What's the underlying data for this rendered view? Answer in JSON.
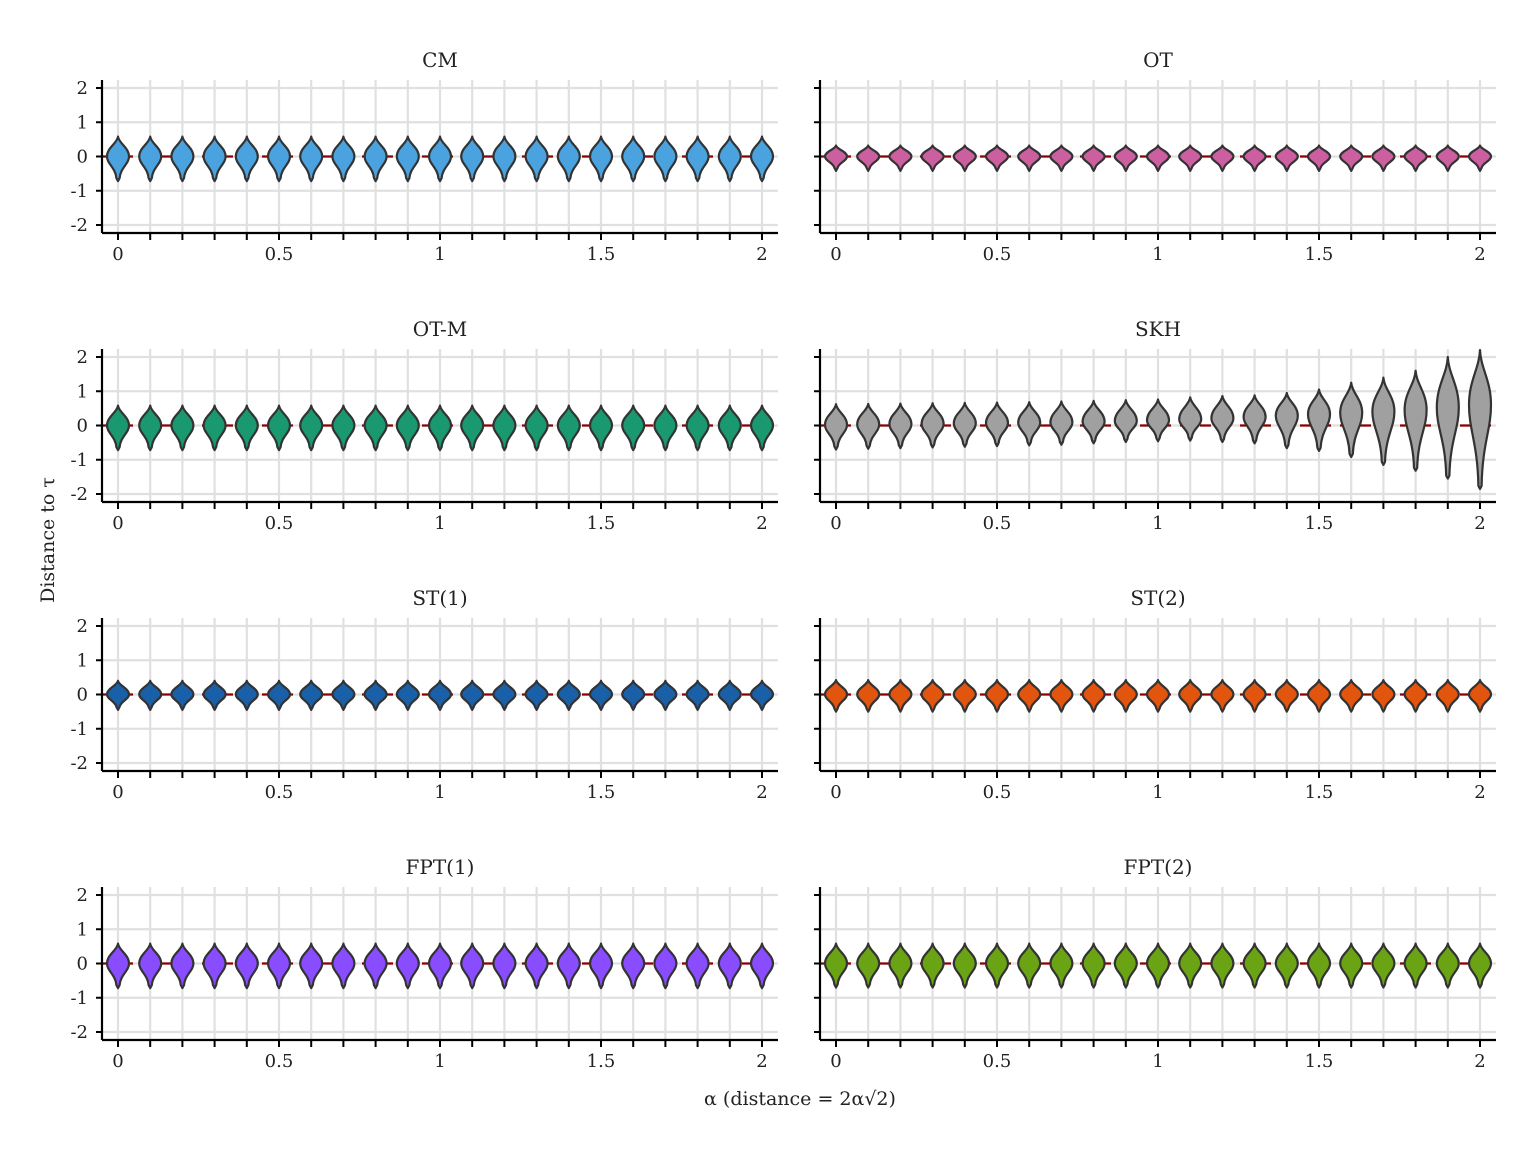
{
  "chart_data": {
    "type": "violin",
    "xlabel": "α (distance  = 2α√2)",
    "ylabel": "Distance to τ",
    "xlim": [
      0,
      2
    ],
    "ylim": [
      -2,
      2
    ],
    "x_ticks": [
      "0",
      "0.5",
      "1",
      "1.5",
      "2"
    ],
    "y_ticks": [
      "-2",
      "-1",
      "0",
      "1",
      "2"
    ],
    "alpha_values": [
      0,
      0.1,
      0.2,
      0.3,
      0.4,
      0.5,
      0.6,
      0.7,
      0.8,
      0.9,
      1.0,
      1.1,
      1.2,
      1.3,
      1.4,
      1.5,
      1.6,
      1.7,
      1.8,
      1.9,
      2.0
    ],
    "reference_line": {
      "y": 0,
      "style": "dashed",
      "color": "#8b0000"
    },
    "grid": true,
    "legend": "none",
    "panels": [
      {
        "title": "CM",
        "color": "#4aa3df",
        "median": [
          0,
          0,
          0,
          0,
          0,
          0,
          0,
          0,
          0,
          0,
          0,
          0,
          0,
          0,
          0,
          0,
          0,
          0,
          0,
          0,
          0
        ],
        "min": [
          -0.72,
          -0.72,
          -0.72,
          -0.72,
          -0.72,
          -0.72,
          -0.72,
          -0.72,
          -0.72,
          -0.72,
          -0.72,
          -0.72,
          -0.72,
          -0.72,
          -0.72,
          -0.72,
          -0.72,
          -0.72,
          -0.72,
          -0.72,
          -0.72
        ],
        "max": [
          0.58,
          0.58,
          0.58,
          0.58,
          0.58,
          0.58,
          0.58,
          0.58,
          0.58,
          0.58,
          0.58,
          0.58,
          0.58,
          0.58,
          0.58,
          0.58,
          0.58,
          0.58,
          0.58,
          0.58,
          0.58
        ]
      },
      {
        "title": "OT",
        "color": "#cc5fa0",
        "median": [
          0,
          0,
          0,
          0,
          0,
          0,
          0,
          0,
          0,
          0,
          0,
          0,
          0,
          0,
          0,
          0,
          0,
          0,
          0,
          0,
          0
        ],
        "min": [
          -0.42,
          -0.42,
          -0.42,
          -0.42,
          -0.42,
          -0.42,
          -0.42,
          -0.42,
          -0.42,
          -0.42,
          -0.42,
          -0.42,
          -0.42,
          -0.42,
          -0.42,
          -0.42,
          -0.42,
          -0.42,
          -0.42,
          -0.42,
          -0.42
        ],
        "max": [
          0.32,
          0.32,
          0.32,
          0.32,
          0.32,
          0.32,
          0.32,
          0.32,
          0.32,
          0.32,
          0.32,
          0.32,
          0.32,
          0.32,
          0.32,
          0.32,
          0.32,
          0.32,
          0.32,
          0.32,
          0.32
        ]
      },
      {
        "title": "OT-M",
        "color": "#1a9870",
        "median": [
          0,
          0,
          0,
          0,
          0,
          0,
          0,
          0,
          0,
          0,
          0,
          0,
          0,
          0,
          0,
          0,
          0,
          0,
          0,
          0,
          0
        ],
        "min": [
          -0.72,
          -0.72,
          -0.72,
          -0.72,
          -0.72,
          -0.72,
          -0.72,
          -0.72,
          -0.72,
          -0.72,
          -0.72,
          -0.72,
          -0.72,
          -0.72,
          -0.72,
          -0.72,
          -0.72,
          -0.72,
          -0.72,
          -0.72,
          -0.72
        ],
        "max": [
          0.58,
          0.58,
          0.58,
          0.58,
          0.58,
          0.58,
          0.58,
          0.58,
          0.58,
          0.58,
          0.58,
          0.58,
          0.58,
          0.58,
          0.58,
          0.58,
          0.58,
          0.58,
          0.58,
          0.58,
          0.58
        ]
      },
      {
        "title": "SKH",
        "color": "#a0a0a0",
        "median": [
          0.02,
          0.03,
          0.04,
          0.05,
          0.06,
          0.07,
          0.08,
          0.09,
          0.11,
          0.13,
          0.15,
          0.18,
          0.21,
          0.25,
          0.29,
          0.33,
          0.37,
          0.41,
          0.45,
          0.52,
          0.6
        ],
        "min": [
          -0.7,
          -0.68,
          -0.66,
          -0.64,
          -0.62,
          -0.6,
          -0.58,
          -0.56,
          -0.52,
          -0.48,
          -0.46,
          -0.44,
          -0.48,
          -0.52,
          -0.66,
          -0.74,
          -0.92,
          -1.15,
          -1.32,
          -1.55,
          -1.85
        ],
        "max": [
          0.62,
          0.63,
          0.64,
          0.65,
          0.66,
          0.67,
          0.68,
          0.7,
          0.72,
          0.74,
          0.76,
          0.82,
          0.86,
          0.88,
          0.95,
          1.05,
          1.25,
          1.4,
          1.6,
          2.0,
          2.2
        ]
      },
      {
        "title": "ST(1)",
        "color": "#1a60a8",
        "median": [
          0,
          0,
          0,
          0,
          0,
          0,
          0,
          0,
          0,
          0,
          0,
          0,
          0,
          0,
          0,
          0,
          0,
          0,
          0,
          0,
          0
        ],
        "min": [
          -0.45,
          -0.45,
          -0.45,
          -0.45,
          -0.45,
          -0.45,
          -0.45,
          -0.45,
          -0.45,
          -0.45,
          -0.45,
          -0.45,
          -0.45,
          -0.45,
          -0.45,
          -0.45,
          -0.45,
          -0.45,
          -0.45,
          -0.45,
          -0.45
        ],
        "max": [
          0.4,
          0.4,
          0.4,
          0.4,
          0.4,
          0.4,
          0.4,
          0.4,
          0.4,
          0.4,
          0.4,
          0.4,
          0.4,
          0.4,
          0.4,
          0.4,
          0.4,
          0.4,
          0.4,
          0.4,
          0.4
        ]
      },
      {
        "title": "ST(2)",
        "color": "#e2550e",
        "median": [
          0,
          0,
          0,
          0,
          0,
          0,
          0,
          0,
          0,
          0,
          0,
          0,
          0,
          0,
          0,
          0,
          0,
          0,
          0,
          0,
          0
        ],
        "min": [
          -0.5,
          -0.5,
          -0.5,
          -0.5,
          -0.5,
          -0.5,
          -0.5,
          -0.5,
          -0.5,
          -0.5,
          -0.5,
          -0.5,
          -0.5,
          -0.5,
          -0.5,
          -0.5,
          -0.5,
          -0.5,
          -0.5,
          -0.5,
          -0.5
        ],
        "max": [
          0.42,
          0.42,
          0.42,
          0.42,
          0.42,
          0.42,
          0.42,
          0.42,
          0.42,
          0.42,
          0.42,
          0.42,
          0.42,
          0.42,
          0.42,
          0.42,
          0.42,
          0.42,
          0.42,
          0.42,
          0.42
        ]
      },
      {
        "title": "FPT(1)",
        "color": "#8a4cff",
        "median": [
          0,
          0,
          0,
          0,
          0,
          0,
          0,
          0,
          0,
          0,
          0,
          0,
          0,
          0,
          0,
          0,
          0,
          0,
          0,
          0,
          0
        ],
        "min": [
          -0.72,
          -0.72,
          -0.72,
          -0.72,
          -0.72,
          -0.72,
          -0.72,
          -0.72,
          -0.72,
          -0.72,
          -0.72,
          -0.72,
          -0.72,
          -0.72,
          -0.72,
          -0.72,
          -0.72,
          -0.72,
          -0.72,
          -0.72,
          -0.72
        ],
        "max": [
          0.58,
          0.58,
          0.58,
          0.58,
          0.58,
          0.58,
          0.58,
          0.58,
          0.58,
          0.58,
          0.58,
          0.58,
          0.58,
          0.58,
          0.58,
          0.58,
          0.58,
          0.58,
          0.58,
          0.58,
          0.58
        ]
      },
      {
        "title": "FPT(2)",
        "color": "#6aa313",
        "median": [
          0,
          0,
          0,
          0,
          0,
          0,
          0,
          0,
          0,
          0,
          0,
          0,
          0,
          0,
          0,
          0,
          0,
          0,
          0,
          0,
          0
        ],
        "min": [
          -0.7,
          -0.7,
          -0.7,
          -0.7,
          -0.7,
          -0.7,
          -0.7,
          -0.7,
          -0.7,
          -0.7,
          -0.7,
          -0.7,
          -0.7,
          -0.7,
          -0.7,
          -0.7,
          -0.7,
          -0.7,
          -0.7,
          -0.7,
          -0.7
        ],
        "max": [
          0.58,
          0.58,
          0.58,
          0.58,
          0.58,
          0.58,
          0.58,
          0.58,
          0.58,
          0.58,
          0.58,
          0.58,
          0.58,
          0.58,
          0.58,
          0.58,
          0.58,
          0.58,
          0.58,
          0.58,
          0.58
        ]
      }
    ]
  }
}
